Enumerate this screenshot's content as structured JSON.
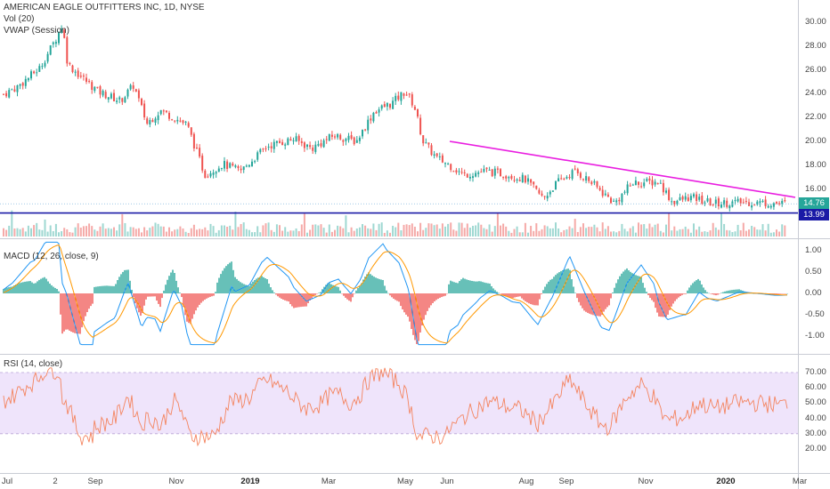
{
  "header": {
    "title": "AMERICAN EAGLE OUTFITTERS INC, 1D, NYSE",
    "volume_label": "Vol (20)",
    "vwap_label": "VWAP (Session)"
  },
  "price_axis": {
    "ticks": [
      "30.00",
      "28.00",
      "26.00",
      "24.00",
      "22.00",
      "20.00",
      "18.00",
      "16.00"
    ],
    "last_price": "14.76",
    "support_price": "13.99"
  },
  "macd": {
    "label": "MACD (12, 26, close, 9)",
    "ticks": [
      "1.00",
      "0.50",
      "0.00",
      "-0.50",
      "-1.00"
    ]
  },
  "rsi": {
    "label": "RSI (14, close)",
    "ticks": [
      "70.00",
      "60.00",
      "50.00",
      "40.00",
      "30.00",
      "20.00"
    ]
  },
  "time_axis": {
    "labels": [
      {
        "text": "Jul",
        "bold": false
      },
      {
        "text": "2",
        "bold": false
      },
      {
        "text": "Sep",
        "bold": false
      },
      {
        "text": "Nov",
        "bold": false
      },
      {
        "text": "2019",
        "bold": true
      },
      {
        "text": "Mar",
        "bold": false
      },
      {
        "text": "May",
        "bold": false
      },
      {
        "text": "Jun",
        "bold": false
      },
      {
        "text": "Aug",
        "bold": false
      },
      {
        "text": "Sep",
        "bold": false
      },
      {
        "text": "Nov",
        "bold": false
      },
      {
        "text": "2020",
        "bold": true
      },
      {
        "text": "Mar",
        "bold": false
      }
    ]
  },
  "colors": {
    "up": "#26a69a",
    "down": "#ef5350",
    "trendline": "#e91ee0",
    "support": "#1a1aa6",
    "macd": "#2196f3",
    "signal": "#ff9800",
    "rsi": "#f4845f",
    "rsi_band": "#efe4fb"
  },
  "chart_data": {
    "type": "candlestick",
    "title": "AMERICAN EAGLE OUTFITTERS INC, 1D, NYSE",
    "price_range": [
      13,
      31
    ],
    "anchors": [
      [
        0,
        23.8
      ],
      [
        20,
        24.6
      ],
      [
        45,
        26.2
      ],
      [
        62,
        28.5
      ],
      [
        70,
        29.8
      ],
      [
        76,
        26.5
      ],
      [
        90,
        25.5
      ],
      [
        110,
        24.2
      ],
      [
        135,
        23.4
      ],
      [
        150,
        24.7
      ],
      [
        165,
        21.5
      ],
      [
        180,
        22.6
      ],
      [
        210,
        21.4
      ],
      [
        230,
        17.2
      ],
      [
        250,
        18.1
      ],
      [
        270,
        17.5
      ],
      [
        300,
        19.6
      ],
      [
        330,
        20.2
      ],
      [
        350,
        19.4
      ],
      [
        375,
        20.5
      ],
      [
        400,
        20.0
      ],
      [
        420,
        22.5
      ],
      [
        440,
        23.2
      ],
      [
        455,
        24.2
      ],
      [
        465,
        23.0
      ],
      [
        475,
        20.0
      ],
      [
        490,
        18.6
      ],
      [
        505,
        18.0
      ],
      [
        520,
        17.2
      ],
      [
        545,
        17.5
      ],
      [
        570,
        17.2
      ],
      [
        590,
        16.8
      ],
      [
        610,
        15.2
      ],
      [
        625,
        16.5
      ],
      [
        645,
        17.5
      ],
      [
        660,
        16.8
      ],
      [
        690,
        14.8
      ],
      [
        710,
        16.5
      ],
      [
        740,
        16.6
      ],
      [
        755,
        14.9
      ],
      [
        775,
        15.3
      ],
      [
        800,
        14.8
      ],
      [
        840,
        14.9
      ],
      [
        884,
        14.76
      ]
    ],
    "trendline": [
      [
        505,
        20.0
      ],
      [
        893,
        15.3
      ]
    ],
    "support_level": 13.99,
    "rsi_overbought": 70,
    "rsi_oversold": 30
  }
}
